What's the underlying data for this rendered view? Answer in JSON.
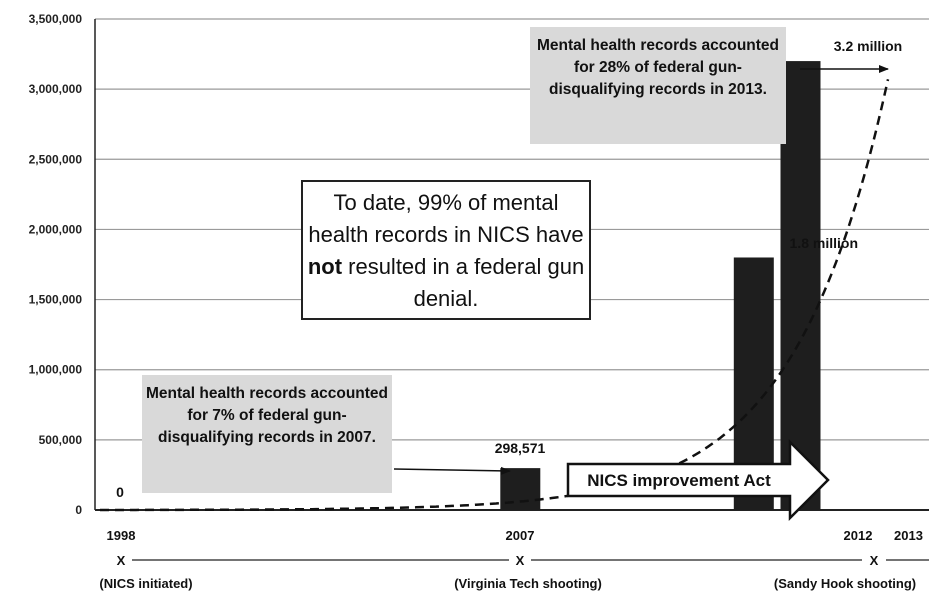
{
  "chart_data": {
    "type": "bar",
    "categories": [
      "1998",
      "2007",
      "2012",
      "2013"
    ],
    "values": [
      0,
      298571,
      1800000,
      3200000
    ],
    "ylim": [
      0,
      3500000
    ],
    "yticks": [
      "0",
      "500,000",
      "1,000,000",
      "1,500,000",
      "2,000,000",
      "2,500,000",
      "3,000,000",
      "3,500,000"
    ],
    "ytick_values": [
      0,
      500000,
      1000000,
      1500000,
      2000000,
      2500000,
      3000000,
      3500000
    ],
    "data_labels": [
      "0",
      "298,571",
      "1.8 million",
      "3.2 million"
    ],
    "grid": true,
    "trend_curve": "dashed exponential",
    "events": [
      {
        "year": "1998",
        "label": "(NICS initiated)"
      },
      {
        "year": "2007",
        "label": "(Virginia Tech shooting)"
      },
      {
        "year": "2012",
        "label": "(Sandy Hook shooting)"
      }
    ],
    "event_marker": "X",
    "arrow_label": "NICS improvement Act",
    "annotations": {
      "note_2013": "Mental health records accounted for 28% of federal gun-disqualifying records in 2013.",
      "note_2007": "Mental health records accounted for 7% of federal gun-disqualifying records in 2007.",
      "center_pre": "To date, 99% of mental health records in NICS have ",
      "center_bold": "not",
      "center_post": " resulted in a federal gun denial."
    },
    "colors": {
      "bars": "#1e1e1e",
      "grid": "#9a9a9a",
      "note_box": "#d9d9d9"
    }
  }
}
